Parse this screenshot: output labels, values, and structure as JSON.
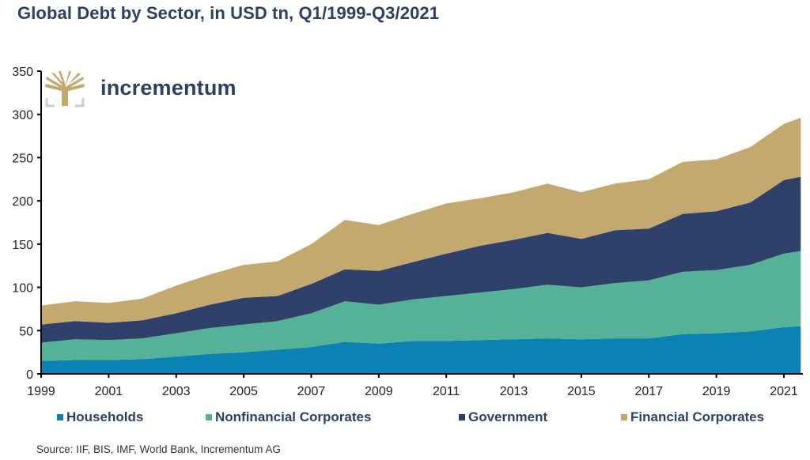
{
  "title": "Global Debt by Sector, in USD tn, Q1/1999-Q3/2021",
  "logo": {
    "icon": "tree-icon",
    "text": "incrementum"
  },
  "source": "Source: IIF, BIS, IMF, World Bank, Incrementum AG",
  "chart_data": {
    "type": "area",
    "stacked": true,
    "title": "Global Debt by Sector, in USD tn, Q1/1999-Q3/2021",
    "xlabel": "",
    "ylabel": "",
    "x": [
      1999.0,
      2000.0,
      2001.0,
      2002.0,
      2003.0,
      2004.0,
      2005.0,
      2006.0,
      2007.0,
      2008.0,
      2009.0,
      2010.0,
      2011.0,
      2012.0,
      2013.0,
      2014.0,
      2015.0,
      2016.0,
      2017.0,
      2018.0,
      2019.0,
      2020.0,
      2021.0,
      2021.5
    ],
    "xlim": [
      1999,
      2021.55
    ],
    "ylim": [
      0,
      350
    ],
    "xticks": [
      "1999",
      "2001",
      "2003",
      "2005",
      "2007",
      "2009",
      "2011",
      "2013",
      "2015",
      "2017",
      "2019",
      "2021"
    ],
    "yticks": [
      "0",
      "50",
      "100",
      "150",
      "200",
      "250",
      "300",
      "350"
    ],
    "grid": false,
    "legend_position": "bottom",
    "series": [
      {
        "name": "Households",
        "color": "#0a82b4",
        "values": [
          15,
          16,
          16,
          17,
          20,
          23,
          25,
          28,
          31,
          37,
          35,
          38,
          38,
          39,
          40,
          41,
          40,
          41,
          41,
          46,
          47,
          49,
          54,
          55
        ]
      },
      {
        "name": "Nonfinancial Corporates",
        "color": "#56b296",
        "values": [
          21,
          24,
          23,
          24,
          27,
          30,
          32,
          33,
          39,
          47,
          45,
          48,
          52,
          55,
          58,
          62,
          60,
          64,
          67,
          72,
          73,
          77,
          85,
          87
        ]
      },
      {
        "name": "Government",
        "color": "#2f416b",
        "values": [
          21,
          21,
          20,
          21,
          23,
          27,
          31,
          29,
          34,
          37,
          39,
          43,
          49,
          54,
          57,
          60,
          56,
          61,
          60,
          67,
          68,
          72,
          85,
          86
        ]
      },
      {
        "name": "Financial Corporates",
        "color": "#c4a96e",
        "values": [
          22,
          23,
          23,
          25,
          32,
          35,
          38,
          40,
          46,
          57,
          53,
          56,
          58,
          55,
          55,
          57,
          54,
          54,
          57,
          60,
          60,
          64,
          65,
          68
        ]
      }
    ]
  }
}
